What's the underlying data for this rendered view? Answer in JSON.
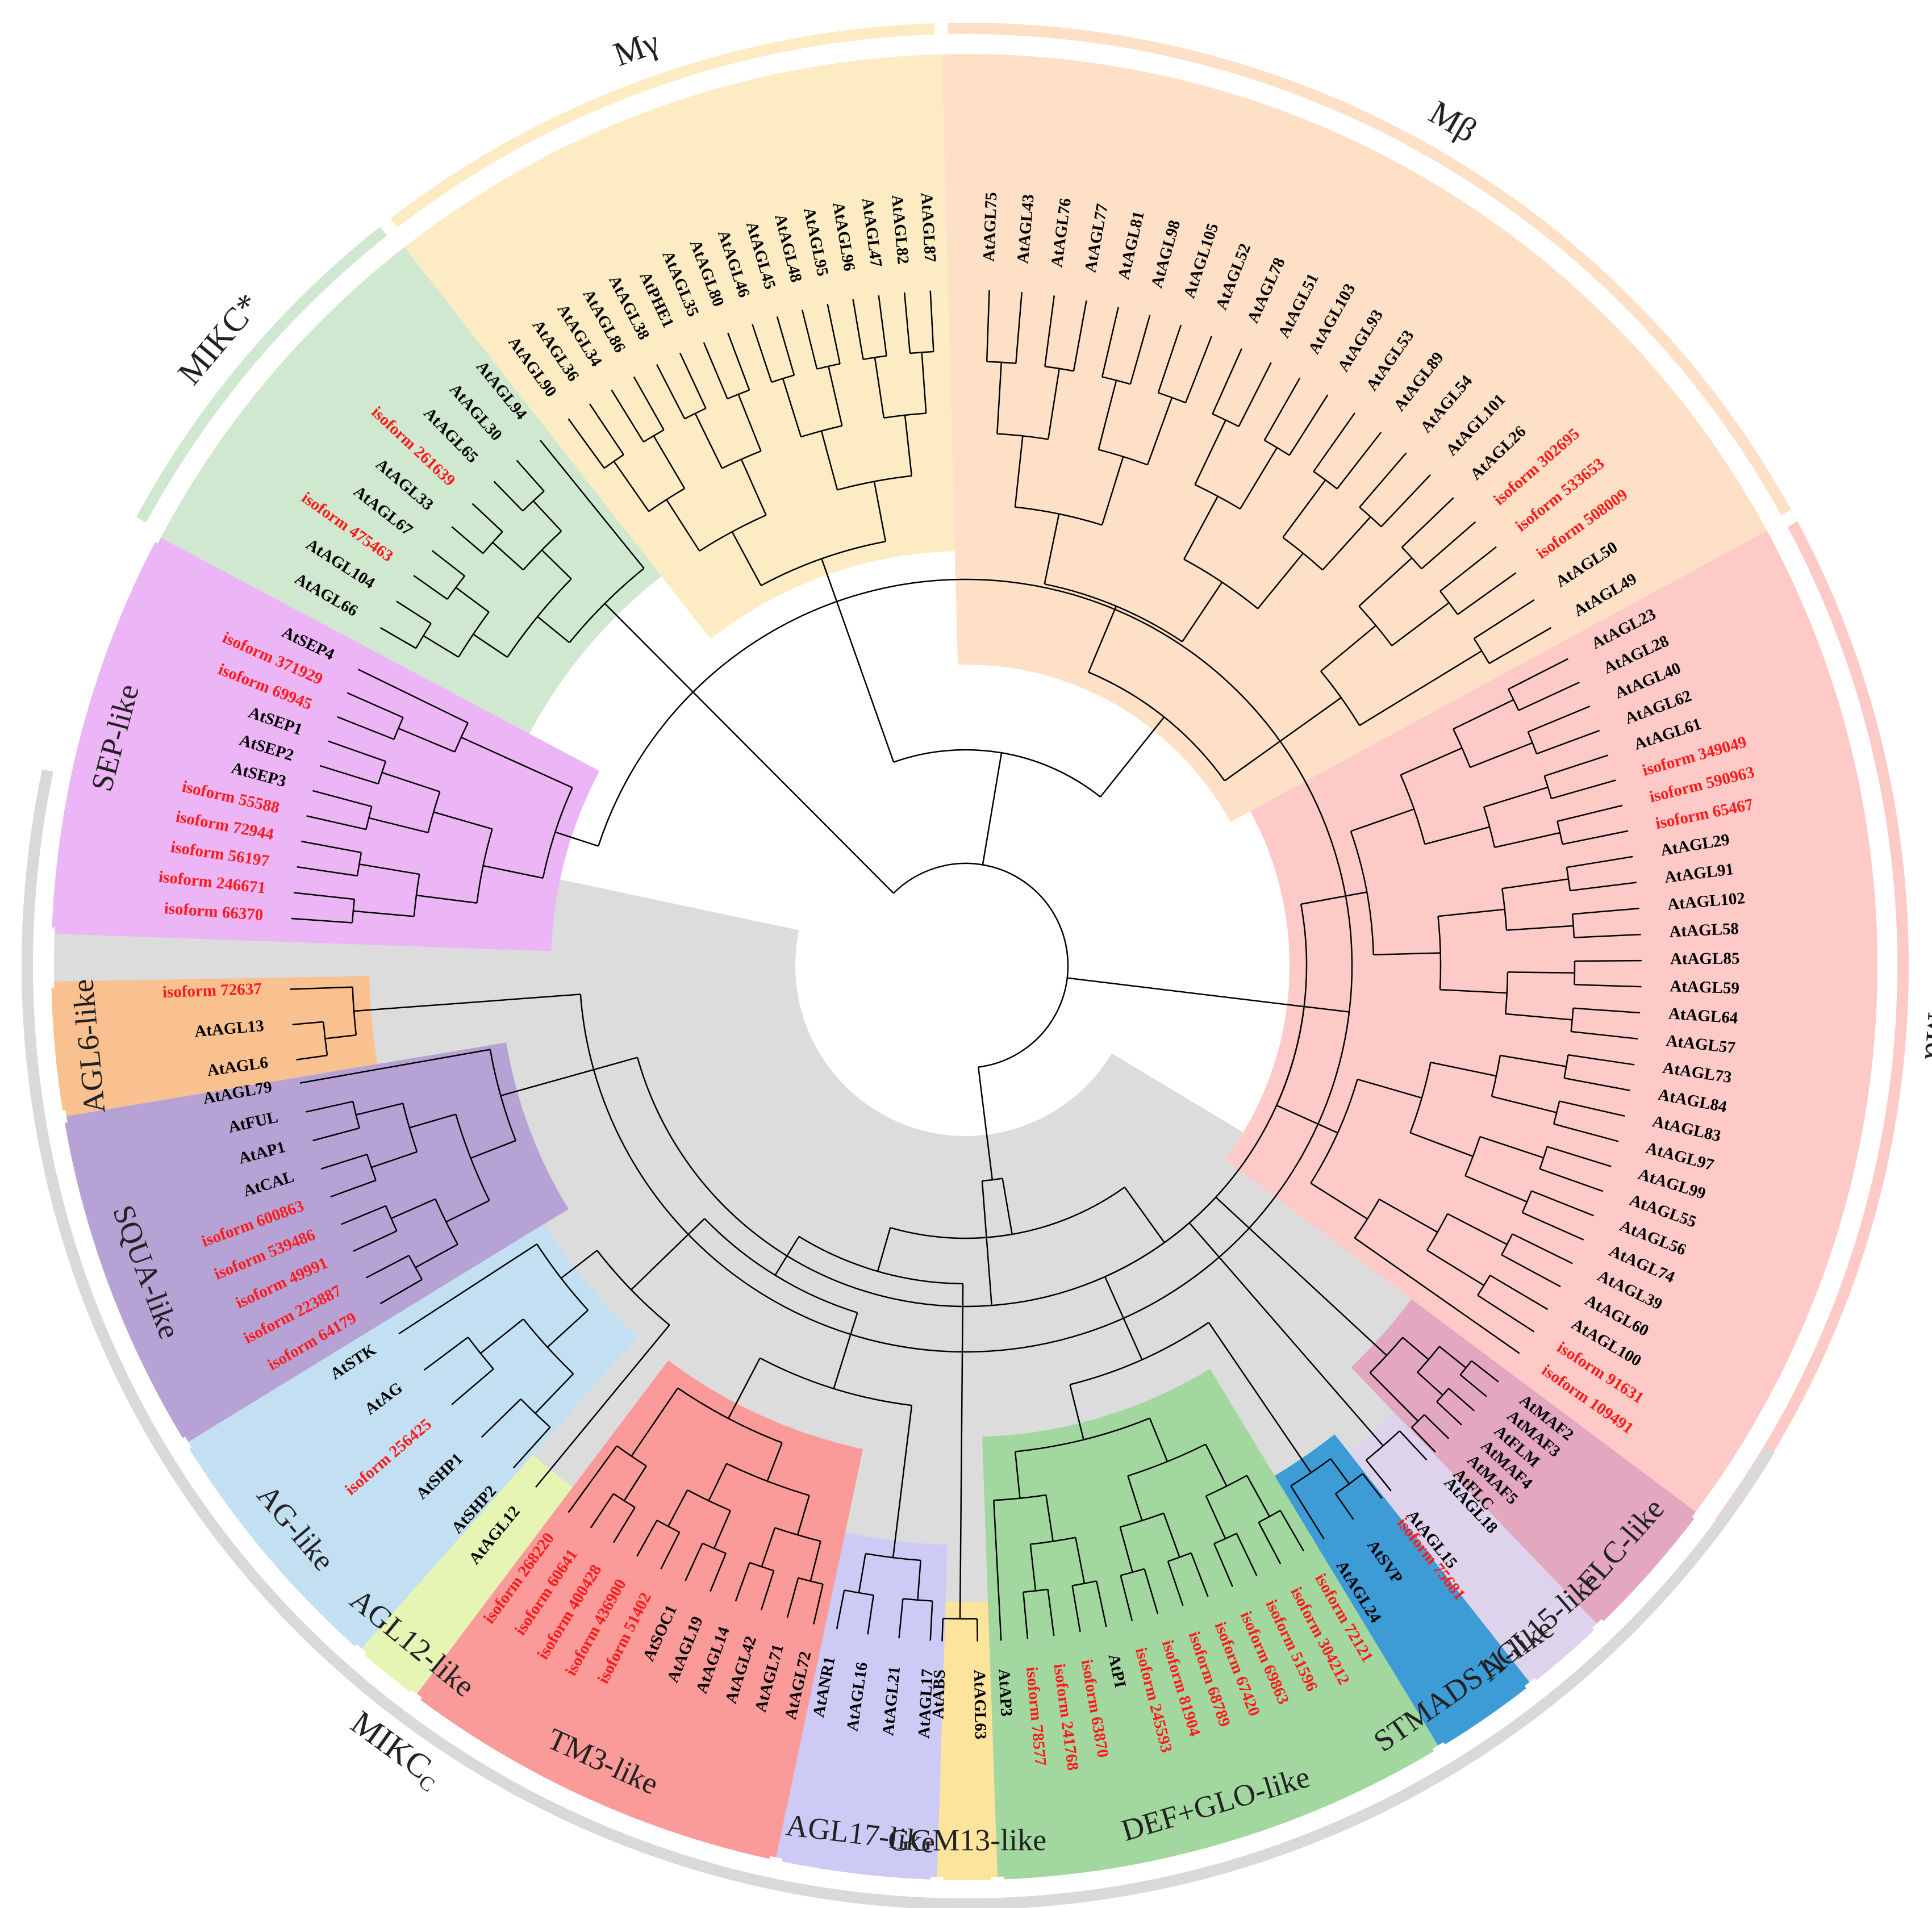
{
  "figure": {
    "type": "circular-phylogenetic-tree",
    "colors": {
      "isoform_label": "#ff1a1a",
      "arabidopsis_label": "#000000",
      "MIKCc_background": "#dcdcdc"
    }
  },
  "groups": [
    {
      "id": "M-gamma",
      "label": "Mγ",
      "color": "#fdebc4",
      "ring": "outer",
      "leaves": [
        "AtAGL90",
        "AtAGL36",
        "AtAGL34",
        "AtAGL86",
        "AtAGL38",
        "AtPHE1",
        "AtAGL35",
        "AtAGL80",
        "AtAGL46",
        "AtAGL45",
        "AtAGL48",
        "AtAGL95",
        "AtAGL96",
        "AtAGL47",
        "AtAGL82",
        "AtAGL87"
      ]
    },
    {
      "id": "MIKC-star",
      "label": "MIKC*",
      "color": "#cfe8cf",
      "ring": "outer",
      "leaves": [
        "AtAGL66",
        "AtAGL104",
        "isoform 475463",
        "AtAGL67",
        "AtAGL33",
        "isoform 261639",
        "AtAGL65",
        "AtAGL30",
        "AtAGL94"
      ]
    },
    {
      "id": "SEP-like",
      "label": "SEP-like",
      "color": "#ecb6f6",
      "ring": "inner",
      "leaves": [
        "isoform 66370",
        "isoform 246671",
        "isoform 56197",
        "isoform 72944",
        "isoform 55588",
        "AtSEP3",
        "AtSEP2",
        "AtSEP1",
        "isoform 69945",
        "isoform 371929",
        "AtSEP4"
      ]
    },
    {
      "id": "AGL6-like",
      "label": "AGL6-like",
      "color": "#f8c18f",
      "ring": "inner",
      "leaves": [
        "AtAGL6",
        "AtAGL13",
        "isoform 72637"
      ]
    },
    {
      "id": "SQUA-like",
      "label": "SQUA-like",
      "color": "#b7a2d6",
      "ring": "inner",
      "leaves": [
        "isoform 64179",
        "isoform 223887",
        "isoform 49991",
        "isoform 539486",
        "isoform 600863",
        "AtCAL",
        "AtAP1",
        "AtFUL",
        "AtAGL79"
      ]
    },
    {
      "id": "AG-like",
      "label": "AG-like",
      "color": "#c3e0f3",
      "ring": "inner",
      "leaves": [
        "AtSHP2",
        "AtSHP1",
        "isoform 256425",
        "AtAG",
        "AtSTK"
      ]
    },
    {
      "id": "AGL12-like",
      "label": "AGL12-like",
      "color": "#e6f5b3",
      "ring": "inner",
      "leaves": [
        "AtAGL12"
      ]
    },
    {
      "id": "TM3-like",
      "label": "TM3-like",
      "color": "#fa9a99",
      "ring": "inner",
      "leaves": [
        "AtAGL72",
        "AtAGL71",
        "AtAGL42",
        "AtAGL14",
        "AtAGL19",
        "AtSOC1",
        "isoform 51402",
        "isoform 436900",
        "isoform 400428",
        "isoform 60641",
        "isoform 268220"
      ]
    },
    {
      "id": "AGL17-like",
      "label": "AGL17-like",
      "color": "#cdcbf6",
      "ring": "inner",
      "leaves": [
        "AtAGL17",
        "AtAGL21",
        "AtAGL16",
        "AtANR1"
      ]
    },
    {
      "id": "GGM13-like",
      "label": "GGM13-like",
      "color": "#fde49c",
      "ring": "inner",
      "leaves": [
        "AtAGL63",
        "AtABS"
      ]
    },
    {
      "id": "DEF-GLO-like",
      "label": "DEF+GLO-like",
      "color": "#a3d7a0",
      "ring": "inner",
      "leaves": [
        "isoform 72121",
        "isoform 304212",
        "isoform 51596",
        "isoform 69863",
        "isoform 67420",
        "isoform 68789",
        "isoform 81904",
        "isoform 245593",
        "AtPI",
        "isoform 63870",
        "isoform 241768",
        "isoform 78577",
        "AtAP3"
      ]
    },
    {
      "id": "STMADS11-like",
      "label": "STMADS11-like",
      "color": "#3d9bd6",
      "ring": "inner",
      "leaves": [
        "isoform 75681",
        "AtSVP",
        "AtAGL24"
      ]
    },
    {
      "id": "AGL15-like",
      "label": "AGL15-like",
      "color": "#ddd3ec",
      "ring": "inner",
      "leaves": [
        "AtAGL18",
        "AtAGL15"
      ]
    },
    {
      "id": "FLC-like",
      "label": "FLC-like",
      "color": "#e3a7c0",
      "ring": "inner",
      "leaves": [
        "AtMAF2",
        "AtMAF3",
        "AtFLM",
        "AtMAF4",
        "AtMAF5",
        "AtFLC"
      ]
    },
    {
      "id": "M-alpha",
      "label": "Mα",
      "color": "#fdcac8",
      "ring": "outer",
      "leaves": [
        "AtAGL23",
        "AtAGL28",
        "AtAGL40",
        "AtAGL62",
        "AtAGL61",
        "isoform 349049",
        "isoform 590963",
        "isoform 65467",
        "AtAGL29",
        "AtAGL91",
        "AtAGL102",
        "AtAGL58",
        "AtAGL85",
        "AtAGL59",
        "AtAGL64",
        "AtAGL57",
        "AtAGL73",
        "AtAGL84",
        "AtAGL83",
        "AtAGL97",
        "AtAGL99",
        "AtAGL55",
        "AtAGL56",
        "AtAGL74",
        "AtAGL39",
        "AtAGL60",
        "AtAGL100",
        "isoform 91631",
        "isoform 109491"
      ]
    },
    {
      "id": "M-beta",
      "label": "Mβ",
      "color": "#fde0c6",
      "ring": "outer",
      "leaves": [
        "AtAGL75",
        "AtAGL43",
        "AtAGL76",
        "AtAGL77",
        "AtAGL81",
        "AtAGL98",
        "AtAGL105",
        "AtAGL52",
        "AtAGL78",
        "AtAGL51",
        "AtAGL103",
        "AtAGL93",
        "AtAGL53",
        "AtAGL89",
        "AtAGL54",
        "AtAGL101",
        "AtAGL26",
        "isoform 302695",
        "isoform 533653",
        "isoform 508009",
        "AtAGL50",
        "AtAGL49"
      ]
    }
  ],
  "superclade": {
    "id": "MIKCc",
    "label": "MIKCC",
    "label_main": "MIKC",
    "label_sub": "C"
  }
}
